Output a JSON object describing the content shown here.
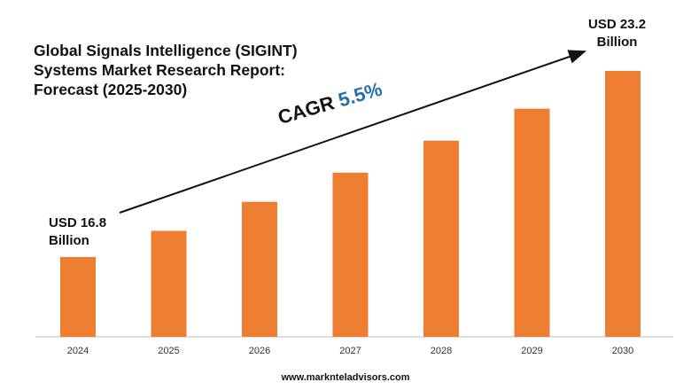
{
  "title": "Global Signals Intelligence (SIGINT) Systems Market Research Report: Forecast (2025-2030)",
  "start_callout": {
    "line1": "USD 16.8",
    "line2": "Billion"
  },
  "end_callout": {
    "line1": "USD 23.2",
    "line2": "Billion"
  },
  "cagr": {
    "label": "CAGR",
    "value": "5.5%"
  },
  "footer": "www.marknteladvisors.com",
  "colors": {
    "bar": "#ed7d31",
    "cagr_value": "#1f6fb2",
    "text": "#111111"
  },
  "chart_data": {
    "type": "bar",
    "categories": [
      "2024",
      "2025",
      "2026",
      "2027",
      "2028",
      "2029",
      "2030"
    ],
    "values": [
      16.8,
      17.7,
      18.7,
      19.7,
      20.8,
      21.9,
      23.2
    ],
    "title": "Global Signals Intelligence (SIGINT) Systems Market Research Report: Forecast (2025-2030)",
    "xlabel": "",
    "ylabel": "",
    "grid": false,
    "legend": "none",
    "annotations": [
      "USD 16.8 Billion",
      "USD 23.2 Billion",
      "CAGR 5.5%"
    ]
  }
}
